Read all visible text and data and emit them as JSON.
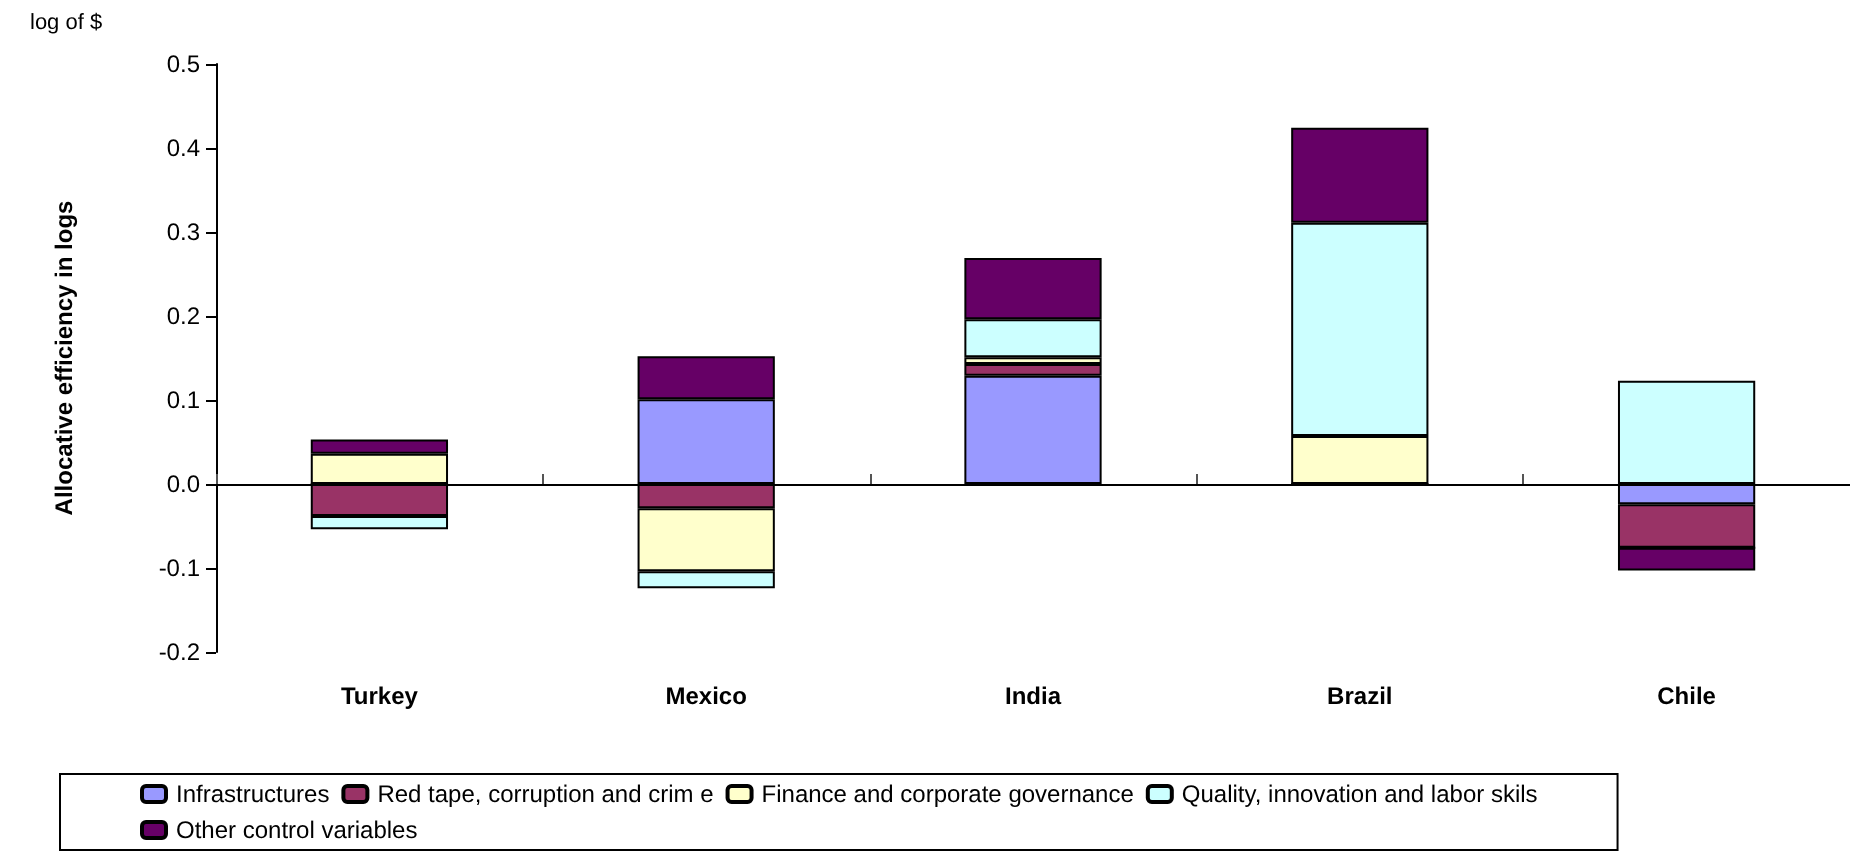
{
  "chart_data": {
    "type": "bar",
    "stacked": true,
    "ylabel": "Allocative efficiency in logs",
    "annotations": [
      "log of $"
    ],
    "categories": [
      "Turkey",
      "Mexico",
      "India",
      "Brazil",
      "Chile"
    ],
    "series": [
      {
        "name": "Infrastructures",
        "color": "#9999ff",
        "values": [
          0,
          0.101,
          0.129,
          null,
          -0.024
        ]
      },
      {
        "name": "Red tape, corruption and crim e",
        "color": "#993366",
        "values": [
          -0.038,
          -0.029,
          0.014,
          0,
          -0.052
        ]
      },
      {
        "name": "Finance and corporate governance",
        "color": "#ffffcc",
        "values": [
          0.036,
          -0.075,
          0.008,
          0.057,
          0
        ]
      },
      {
        "name": "Quality, innovation and labor skils",
        "color": "#ccffff",
        "values": [
          -0.016,
          -0.02,
          0.045,
          0.254,
          0.123
        ]
      },
      {
        "name": "Other control variables",
        "color": "#660066",
        "values": [
          0.017,
          0.051,
          0.073,
          0.113,
          -0.027
        ]
      }
    ],
    "ylim": [
      -0.2,
      0.5
    ],
    "yticks": [
      {
        "value": -0.2,
        "label": "-0.2"
      },
      {
        "value": -0.1,
        "label": "-0.1"
      },
      {
        "value": 0,
        "label": "0.0"
      },
      {
        "value": 0.1,
        "label": "0.1"
      },
      {
        "value": 0.2,
        "label": "0.2"
      },
      {
        "value": 0.3,
        "label": "0.3"
      },
      {
        "value": 0.4,
        "label": "0.4"
      },
      {
        "value": 0.5,
        "label": "0.5"
      }
    ],
    "legend": "bottom"
  }
}
